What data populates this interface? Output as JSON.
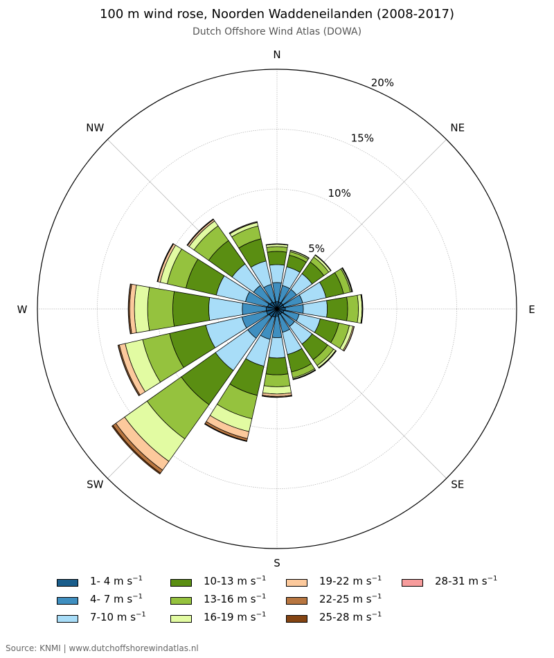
{
  "title": "100 m wind rose, Noorden Waddeneilanden (2008-2017)",
  "subtitle": "Dutch Offshore Wind Atlas (DOWA)",
  "source": "Source: KNMI | www.dutchoffshorewindatlas.nl",
  "chart_data": {
    "type": "wind-rose",
    "directions": [
      "N",
      "NNE",
      "NE",
      "ENE",
      "E",
      "ESE",
      "SE",
      "SSE",
      "S",
      "SSW",
      "SW",
      "WSW",
      "W",
      "WNW",
      "NW",
      "NNW"
    ],
    "compass_labels": [
      "N",
      "NE",
      "E",
      "SE",
      "S",
      "SW",
      "W",
      "NW"
    ],
    "radial_ticks": [
      {
        "value": 5,
        "label": "5%"
      },
      {
        "value": 10,
        "label": "10%"
      },
      {
        "value": 15,
        "label": "15%"
      },
      {
        "value": 20,
        "label": "20%"
      }
    ],
    "rmax": 20,
    "units": "%",
    "series": [
      {
        "name": "1- 4 m s",
        "unit_exponent": "−1",
        "color": "#1a5e8c",
        "values": [
          0.6,
          0.6,
          0.6,
          0.6,
          0.7,
          0.6,
          0.5,
          0.5,
          0.6,
          0.7,
          0.8,
          0.9,
          0.9,
          0.8,
          0.7,
          0.6
        ]
      },
      {
        "name": "4- 7 m s",
        "unit_exponent": "−1",
        "color": "#3f8fc0",
        "values": [
          1.6,
          1.4,
          1.4,
          1.6,
          1.5,
          1.3,
          1.3,
          1.5,
          1.8,
          1.9,
          2.2,
          2.1,
          2.0,
          1.9,
          1.7,
          1.5
        ]
      },
      {
        "name": "7-10 m s",
        "unit_exponent": "−1",
        "color": "#a8ddf8",
        "values": [
          1.5,
          1.6,
          1.6,
          2.0,
          2.0,
          1.8,
          1.8,
          1.9,
          1.7,
          2.3,
          3.3,
          3.1,
          2.8,
          2.5,
          2.2,
          2.0
        ]
      },
      {
        "name": "10-13 m s",
        "unit_exponent": "−1",
        "color": "#5a8e12",
        "values": [
          1.1,
          1.0,
          1.2,
          1.5,
          1.7,
          1.6,
          1.6,
          1.5,
          1.4,
          2.5,
          3.5,
          3.1,
          3.0,
          2.6,
          2.4,
          1.9
        ]
      },
      {
        "name": "13-16 m s",
        "unit_exponent": "−1",
        "color": "#95c23e",
        "values": [
          0.4,
          0.3,
          0.5,
          0.6,
          0.9,
          0.9,
          0.6,
          0.5,
          1.0,
          2.0,
          3.5,
          2.3,
          2.1,
          1.6,
          1.5,
          1.1
        ]
      },
      {
        "name": "16-19 m s",
        "unit_exponent": "−1",
        "color": "#e2fba2",
        "values": [
          0.2,
          0.1,
          0.2,
          0.1,
          0.3,
          0.3,
          0.2,
          0.1,
          0.6,
          1.1,
          2.3,
          1.5,
          1.1,
          0.6,
          0.5,
          0.3
        ]
      },
      {
        "name": "19-22 m s",
        "unit_exponent": "−1",
        "color": "#fcc99c",
        "values": [
          0.03,
          0.02,
          0.03,
          0.05,
          0.05,
          0.1,
          0.05,
          0.04,
          0.2,
          0.6,
          0.9,
          0.5,
          0.4,
          0.2,
          0.15,
          0.06
        ]
      },
      {
        "name": "22-25 m s",
        "unit_exponent": "−1",
        "color": "#b87640",
        "values": [
          0.01,
          0.01,
          0.01,
          0.02,
          0.02,
          0.02,
          0.02,
          0.02,
          0.07,
          0.2,
          0.3,
          0.1,
          0.1,
          0.05,
          0.05,
          0.02
        ]
      },
      {
        "name": "25-28 m s",
        "unit_exponent": "−1",
        "color": "#844412",
        "values": [
          0.0,
          0.0,
          0.0,
          0.0,
          0.0,
          0.0,
          0.0,
          0.0,
          0.02,
          0.05,
          0.1,
          0.02,
          0.02,
          0.01,
          0.01,
          0.0
        ]
      },
      {
        "name": "28-31 m s",
        "unit_exponent": "−1",
        "color": "#f79c9c",
        "values": [
          0,
          0,
          0,
          0,
          0,
          0,
          0,
          0,
          0,
          0,
          0,
          0,
          0,
          0,
          0,
          0
        ]
      }
    ],
    "grid": true,
    "legend": "bottom"
  }
}
